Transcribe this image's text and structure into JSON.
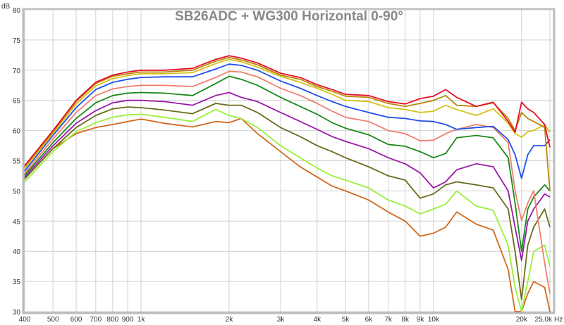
{
  "chart_data": {
    "type": "line",
    "title": "SB26ADC + WG300 Horizontal 0-90°",
    "xlabel": "Hz",
    "ylabel": "dB",
    "xscale": "log",
    "xlim": [
      400,
      26000
    ],
    "ylim": [
      30,
      80
    ],
    "grid": true,
    "legend": "none",
    "y_ticks": [
      30,
      35,
      40,
      45,
      50,
      55,
      60,
      65,
      70,
      75,
      80
    ],
    "x_ticks": [
      {
        "value": 400,
        "label": "400"
      },
      {
        "value": 500,
        "label": "500"
      },
      {
        "value": 600,
        "label": "600"
      },
      {
        "value": 700,
        "label": "700"
      },
      {
        "value": 800,
        "label": "800"
      },
      {
        "value": 900,
        "label": "900"
      },
      {
        "value": 1000,
        "label": "1k"
      },
      {
        "value": 2000,
        "label": "2k"
      },
      {
        "value": 3000,
        "label": "3k"
      },
      {
        "value": 4000,
        "label": "4k"
      },
      {
        "value": 5000,
        "label": "5k"
      },
      {
        "value": 6000,
        "label": "6k"
      },
      {
        "value": 7000,
        "label": "7k"
      },
      {
        "value": 8000,
        "label": "8k"
      },
      {
        "value": 9000,
        "label": "9k"
      },
      {
        "value": 10000,
        "label": "10k"
      },
      {
        "value": 20000,
        "label": "20k"
      },
      {
        "value": 25000,
        "label": "25,0k"
      }
    ],
    "x": [
      400,
      500,
      600,
      700,
      800,
      900,
      1000,
      1200,
      1500,
      1800,
      2000,
      2200,
      2500,
      3000,
      3500,
      4000,
      4500,
      5000,
      6000,
      7000,
      8000,
      9000,
      10000,
      11000,
      12000,
      14000,
      16000,
      18000,
      19000,
      20000,
      21000,
      22000,
      24000,
      25000
    ],
    "series": [
      {
        "color": "#e8102a",
        "values": [
          54.2,
          60,
          65,
          68,
          69.2,
          69.7,
          70,
          70,
          70.3,
          71.8,
          72.4,
          72,
          71.2,
          69.5,
          68.8,
          67.6,
          66.8,
          66,
          65.8,
          64.8,
          64.4,
          65.3,
          65.7,
          66.8,
          65.5,
          64,
          64.7,
          61.5,
          59.7,
          64.7,
          63.6,
          63,
          61,
          57.2
        ]
      },
      {
        "color": "#b8860b",
        "values": [
          54,
          59.8,
          64.8,
          67.8,
          69,
          69.4,
          69.7,
          69.7,
          70,
          71.5,
          72.1,
          71.7,
          70.9,
          69.2,
          68.5,
          67.3,
          66.5,
          65.7,
          65.5,
          64.5,
          64,
          64.5,
          65,
          65.8,
          64.2,
          64,
          64.6,
          62,
          60,
          63,
          62,
          61.5,
          60.5,
          50
        ]
      },
      {
        "color": "#d4c21a",
        "values": [
          53.7,
          59.5,
          64.4,
          67.4,
          68.6,
          69.1,
          69.4,
          69.4,
          69.6,
          71.1,
          71.8,
          71.4,
          70.5,
          69,
          68,
          67,
          66,
          65,
          64.8,
          63.8,
          63.5,
          63,
          63.2,
          64.2,
          63.5,
          62.5,
          63.6,
          61.2,
          59.5,
          58.9,
          59.8,
          60,
          61,
          59.7
        ]
      },
      {
        "color": "#1f4fe8",
        "values": [
          53.3,
          59.2,
          63.8,
          66.8,
          68,
          68.5,
          68.8,
          68.9,
          68.9,
          70.2,
          71,
          70.8,
          70,
          68.2,
          67,
          65.8,
          64.8,
          64,
          63,
          62.2,
          62,
          61.6,
          61.5,
          61,
          60.2,
          60.5,
          60.7,
          58.5,
          56,
          52.1,
          56,
          57.5,
          57.5,
          58.5
        ]
      },
      {
        "color": "#f08070",
        "values": [
          52.9,
          58.6,
          63,
          65.8,
          66.9,
          67.3,
          67.5,
          67.5,
          67.3,
          68.8,
          69.8,
          69.7,
          68.9,
          67,
          65.8,
          64.5,
          63.2,
          62.2,
          61.5,
          60,
          59.5,
          58.3,
          58.4,
          59.5,
          60.2,
          61,
          60.5,
          58,
          50,
          45.1,
          48,
          50,
          38,
          33
        ]
      },
      {
        "color": "#1a8a1a",
        "values": [
          52.6,
          58,
          62,
          64.6,
          65.8,
          66.2,
          66.3,
          66.2,
          65.8,
          67.8,
          69,
          68.5,
          67.5,
          65.5,
          64,
          62.7,
          61.3,
          60.4,
          59.3,
          57.7,
          57.4,
          56.5,
          55.5,
          56.2,
          58.8,
          59.2,
          58.8,
          55.5,
          48,
          40,
          47,
          49,
          51,
          50
        ]
      },
      {
        "color": "#9a1aa8",
        "values": [
          52.3,
          57.5,
          61.2,
          63.3,
          64.6,
          65,
          65,
          64.8,
          64.2,
          65.8,
          66.3,
          65.5,
          64.8,
          63,
          61.5,
          60.2,
          59,
          58.2,
          57,
          55.5,
          54.5,
          53,
          50.5,
          51.5,
          53.5,
          54.5,
          54,
          50,
          44,
          38.5,
          45,
          47,
          49.5,
          49
        ]
      },
      {
        "color": "#6b6b1a",
        "values": [
          52,
          57,
          60.5,
          62.5,
          63.6,
          63.9,
          63.8,
          63.4,
          62.8,
          64.5,
          64.2,
          64.2,
          63,
          60.5,
          59,
          57.5,
          56.5,
          55.5,
          54,
          52.5,
          51.8,
          48.8,
          49.5,
          51,
          51.5,
          51,
          50.5,
          47,
          40,
          32,
          41,
          44,
          47,
          44
        ]
      },
      {
        "color": "#99f03a",
        "values": [
          51.5,
          56.5,
          59.8,
          61.3,
          62.2,
          62.6,
          62.7,
          62.2,
          61.5,
          63.5,
          62.5,
          62,
          60.5,
          57.5,
          55.5,
          53.8,
          52.5,
          51.8,
          50.5,
          48.5,
          47.5,
          46.2,
          47,
          47.8,
          50,
          47.5,
          46.8,
          41,
          34,
          30,
          35,
          40,
          41,
          37.5
        ]
      },
      {
        "color": "#d2691e",
        "values": [
          52,
          57,
          59.5,
          60.5,
          61,
          61.5,
          61.9,
          61.2,
          60.6,
          61.5,
          61.3,
          62,
          59.5,
          56.5,
          54,
          52.3,
          50.8,
          50,
          48.5,
          46.5,
          45,
          42.5,
          43,
          44,
          46.5,
          44.5,
          43.5,
          37,
          30,
          30,
          33,
          35,
          34,
          30
        ]
      }
    ]
  }
}
